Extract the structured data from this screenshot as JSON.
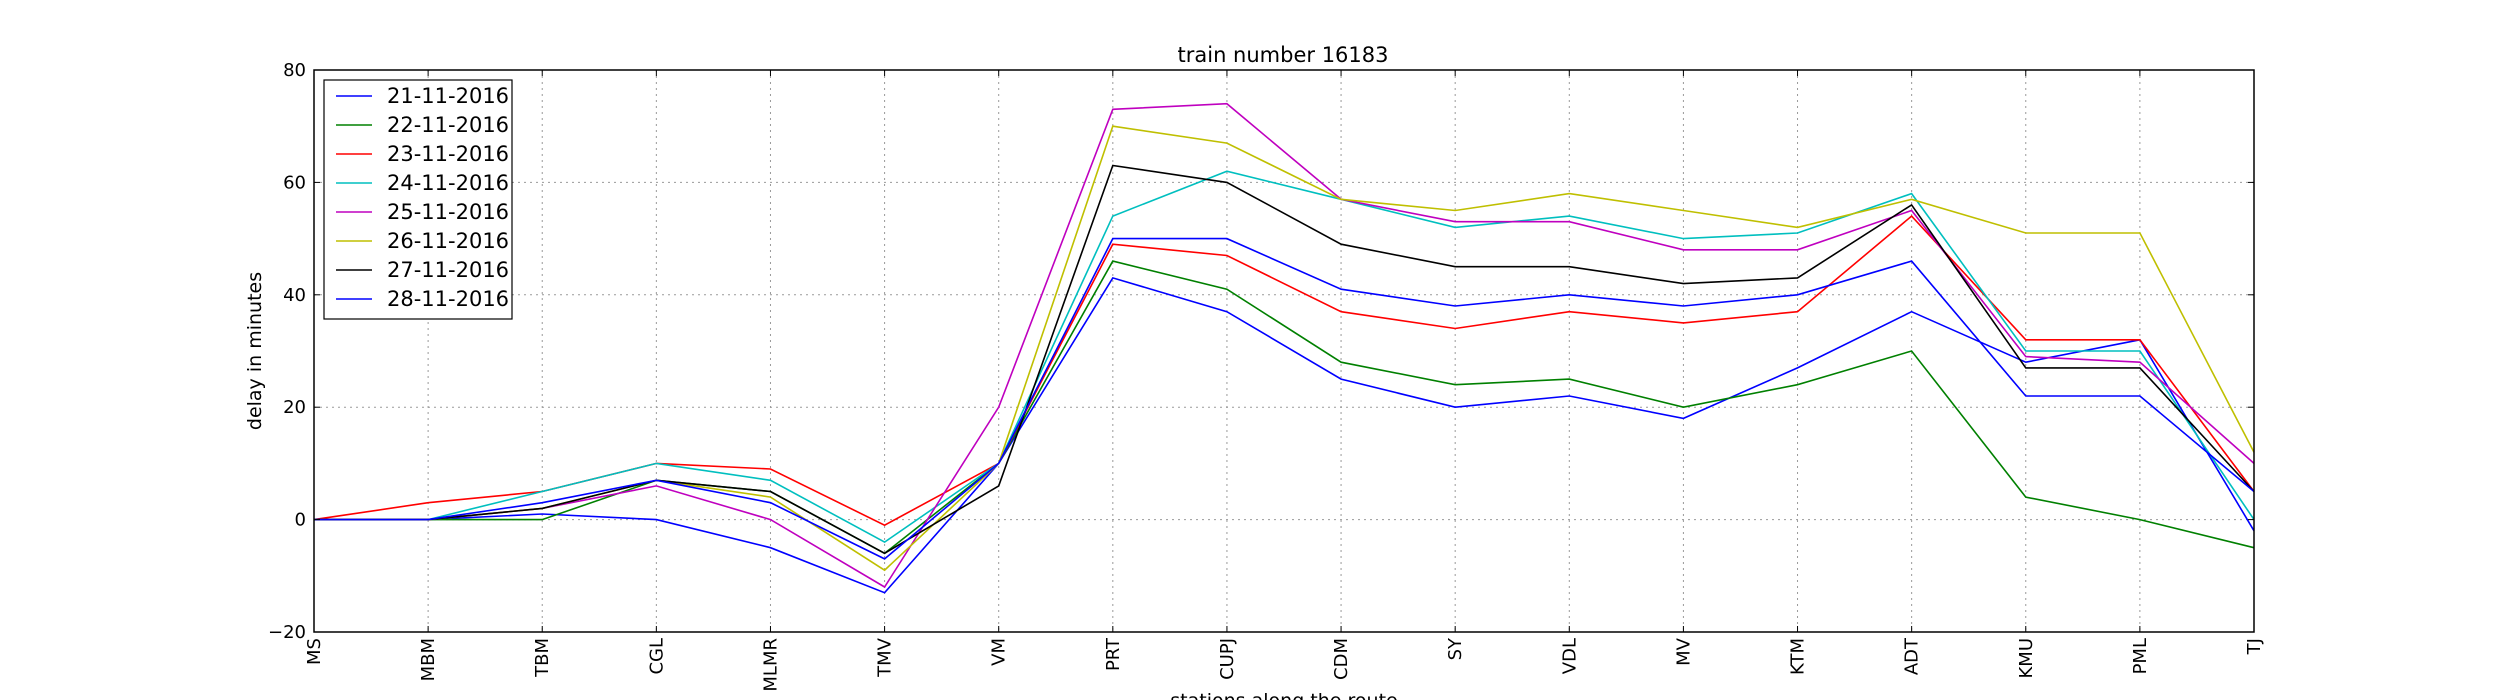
{
  "chart_data": {
    "type": "line",
    "title": "train number 16183",
    "xlabel": "stations along the route",
    "ylabel": "delay in minutes",
    "ylim": [
      -20,
      80
    ],
    "yticks": [
      "−20",
      "0",
      "20",
      "40",
      "60",
      "80"
    ],
    "ytick_values": [
      -20,
      0,
      20,
      40,
      60,
      80
    ],
    "grid": true,
    "legend_position": "top-left",
    "categories": [
      "MS",
      "MBM",
      "TBM",
      "CGL",
      "MLMR",
      "TMV",
      "VM",
      "PRT",
      "CUPJ",
      "CDM",
      "SY",
      "VDL",
      "MV",
      "KTM",
      "ADT",
      "KMU",
      "PML",
      "TJ"
    ],
    "series": [
      {
        "name": "21-11-2016",
        "color": "#0000ff",
        "values": [
          0,
          0,
          1,
          0,
          -5,
          -13,
          10,
          43,
          37,
          25,
          20,
          22,
          18,
          27,
          37,
          28,
          32,
          -2
        ]
      },
      {
        "name": "22-11-2016",
        "color": "#008000",
        "values": [
          0,
          0,
          0,
          7,
          5,
          -6,
          10,
          46,
          41,
          28,
          24,
          25,
          20,
          24,
          30,
          4,
          0,
          -5
        ]
      },
      {
        "name": "23-11-2016",
        "color": "#ff0000",
        "values": [
          0,
          3,
          5,
          10,
          9,
          -1,
          10,
          49,
          47,
          37,
          34,
          37,
          35,
          37,
          54,
          32,
          32,
          5
        ]
      },
      {
        "name": "24-11-2016",
        "color": "#00bfbf",
        "values": [
          0,
          0,
          5,
          10,
          7,
          -4,
          10,
          54,
          62,
          57,
          52,
          54,
          50,
          51,
          58,
          30,
          30,
          0
        ]
      },
      {
        "name": "25-11-2016",
        "color": "#bf00bf",
        "values": [
          0,
          0,
          2,
          6,
          0,
          -12,
          20,
          73,
          74,
          57,
          53,
          53,
          48,
          48,
          55,
          29,
          28,
          10
        ]
      },
      {
        "name": "26-11-2016",
        "color": "#bfbf00",
        "values": [
          0,
          0,
          2,
          7,
          4,
          -9,
          10,
          70,
          67,
          57,
          55,
          58,
          55,
          52,
          57,
          51,
          51,
          12
        ]
      },
      {
        "name": "27-11-2016",
        "color": "#000000",
        "values": [
          0,
          0,
          2,
          7,
          5,
          -6,
          6,
          63,
          60,
          49,
          45,
          45,
          42,
          43,
          56,
          27,
          27,
          5
        ]
      },
      {
        "name": "28-11-2016",
        "color": "#0000ff",
        "values": [
          0,
          0,
          3,
          7,
          3,
          -7,
          10,
          50,
          50,
          41,
          38,
          40,
          38,
          40,
          46,
          22,
          22,
          5
        ]
      }
    ]
  }
}
